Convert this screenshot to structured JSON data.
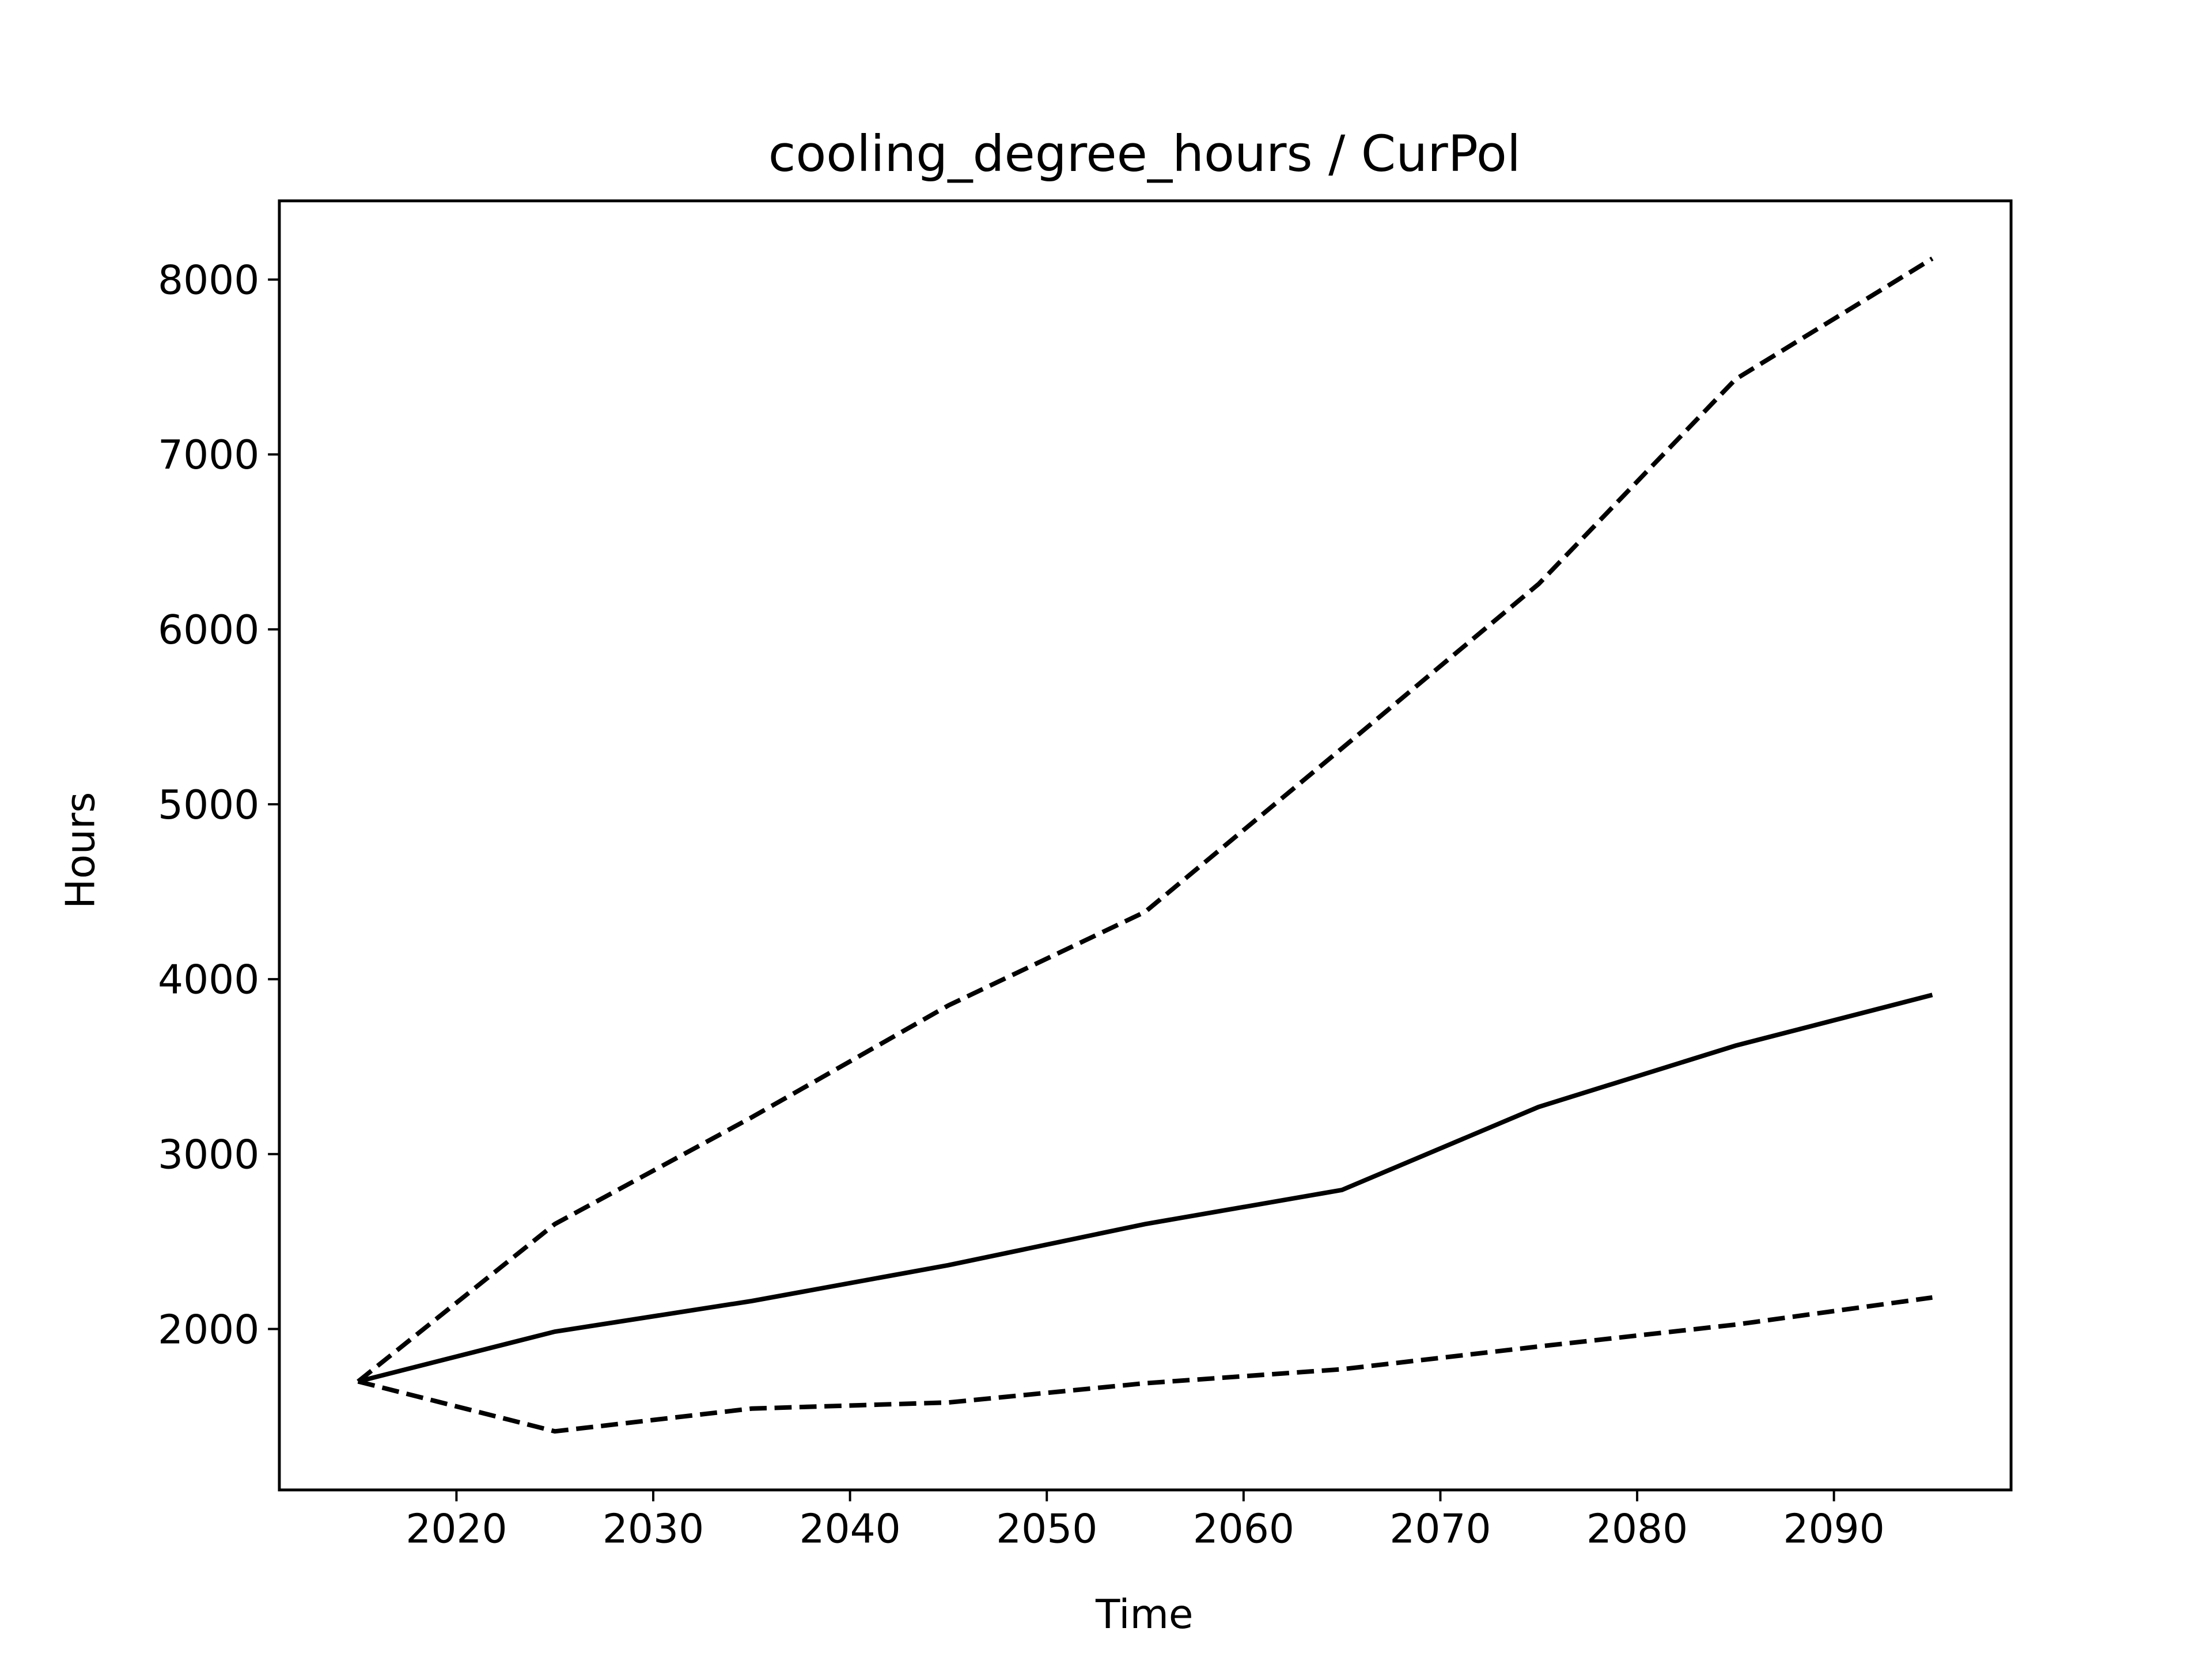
{
  "chart_data": {
    "type": "line",
    "title": "cooling_degree_hours / CurPol",
    "xlabel": "Time",
    "ylabel": "Hours",
    "xlim": [
      2011,
      2099
    ],
    "ylim": [
      1080,
      8450
    ],
    "xticks": [
      2020,
      2030,
      2040,
      2050,
      2060,
      2070,
      2080,
      2090
    ],
    "yticks": [
      2000,
      3000,
      4000,
      5000,
      6000,
      7000,
      8000
    ],
    "grid": false,
    "x": [
      2015,
      2025,
      2035,
      2045,
      2055,
      2065,
      2075,
      2085,
      2095
    ],
    "series": [
      {
        "style": "solid",
        "color": "#000000",
        "values": [
          1700,
          1985,
          2160,
          2365,
          2600,
          2795,
          3270,
          3620,
          3910
        ]
      },
      {
        "style": "dashed",
        "color": "#000000",
        "values": [
          1700,
          2600,
          3210,
          3850,
          4385,
          5320,
          6260,
          7430,
          8120
        ]
      },
      {
        "style": "dashed",
        "color": "#000000",
        "values": [
          1700,
          1415,
          1545,
          1580,
          1690,
          1770,
          1900,
          2025,
          2180
        ]
      }
    ]
  }
}
